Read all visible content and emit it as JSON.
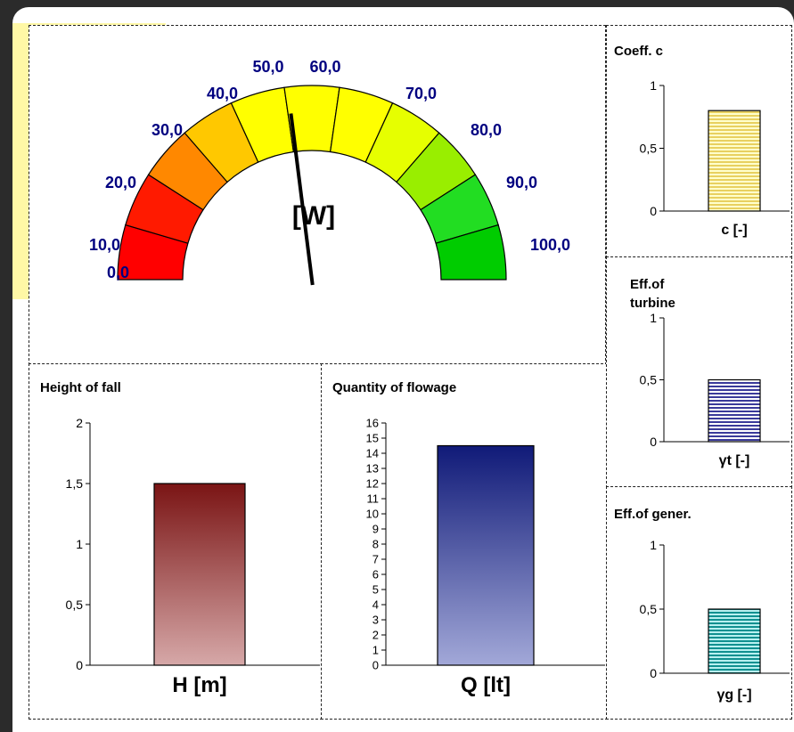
{
  "gauge": {
    "unit": "[W]",
    "min": 0,
    "max": 100,
    "value": 46,
    "tick_labels": [
      "0,0",
      "10,0",
      "20,0",
      "30,0",
      "40,0",
      "50,0",
      "60,0",
      "70,0",
      "80,0",
      "90,0",
      "100,0"
    ],
    "segment_colors": [
      "#ff0000",
      "#ff1a00",
      "#ff8800",
      "#ffc800",
      "#ffff00",
      "#ffff00",
      "#ffff00",
      "#e6ff00",
      "#99ee00",
      "#22dd22",
      "#00cc00"
    ],
    "label_color": "#000080"
  },
  "chart_data": [
    {
      "type": "bar",
      "title": "Height of fall",
      "categories": [
        "H [m]"
      ],
      "values": [
        1.5
      ],
      "ylim": [
        0,
        2
      ],
      "yticks": [
        "0",
        "0,5",
        "1",
        "1,5",
        "2"
      ],
      "fill": "gradient-maroon"
    },
    {
      "type": "bar",
      "title": "Quantity of flowage",
      "categories": [
        "Q [lt]"
      ],
      "values": [
        14.5
      ],
      "ylim": [
        0,
        16
      ],
      "yticks": [
        "0",
        "1",
        "2",
        "3",
        "4",
        "5",
        "6",
        "7",
        "8",
        "9",
        "10",
        "11",
        "12",
        "13",
        "14",
        "15",
        "16"
      ],
      "fill": "gradient-navy"
    },
    {
      "type": "bar",
      "title": "Coeff. c",
      "categories": [
        "c [-]"
      ],
      "values": [
        0.8
      ],
      "ylim": [
        0,
        1
      ],
      "yticks": [
        "0",
        "0,5",
        "1"
      ],
      "fill": "stripes-yellow"
    },
    {
      "type": "bar",
      "title": "Eff.of turbine",
      "categories": [
        "γt [-]"
      ],
      "values": [
        0.5
      ],
      "ylim": [
        0,
        1
      ],
      "yticks": [
        "0",
        "0,5",
        "1"
      ],
      "fill": "stripes-blue"
    },
    {
      "type": "bar",
      "title": "Eff.of gener.",
      "categories": [
        "γg [-]"
      ],
      "values": [
        0.5
      ],
      "ylim": [
        0,
        1
      ],
      "yticks": [
        "0",
        "0,5",
        "1"
      ],
      "fill": "stripes-teal"
    }
  ]
}
